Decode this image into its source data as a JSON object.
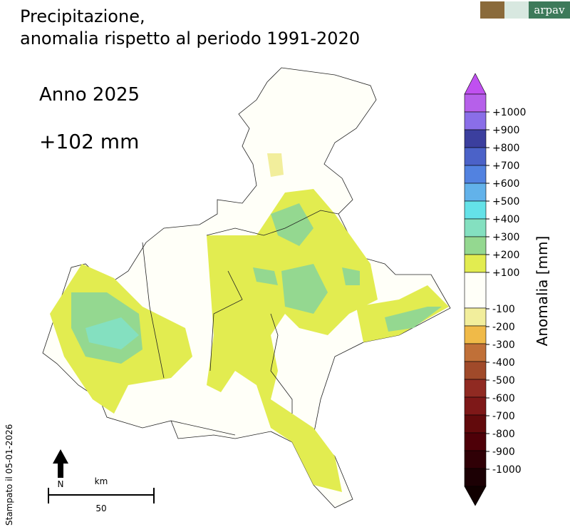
{
  "header": {
    "title_line1": "Precipitazione,",
    "title_line2": "anomalia rispetto al periodo 1991-2020",
    "logo_text": "arpav"
  },
  "map": {
    "year_label": "Anno 2025",
    "total_label": "+102 mm",
    "north_label": "N",
    "scale_unit": "km",
    "scale_value": "50",
    "printed_note": "Stampato il 05-01-2026"
  },
  "colorbar": {
    "label": "Anomalia [mm]",
    "colors": [
      "#c050f0",
      "#b660ea",
      "#8a6ee8",
      "#3b3f9e",
      "#4b62c8",
      "#5282e0",
      "#62b2ea",
      "#64e2e8",
      "#84e0c0",
      "#94d890",
      "#e2ec50",
      "#fffff8",
      "#f2ee9c",
      "#f0ba48",
      "#c07038",
      "#a04a2a",
      "#902a22",
      "#7e1818",
      "#620a0c",
      "#4e0008",
      "#300006",
      "#1c0004",
      "#100000"
    ],
    "ticks": [
      "+1000",
      "+900",
      "+800",
      "+700",
      "+600",
      "+500",
      "+400",
      "+300",
      "+200",
      "+100",
      "-100",
      "-200",
      "-300",
      "-400",
      "-500",
      "-600",
      "-700",
      "-800",
      "-900",
      "-1000"
    ]
  }
}
